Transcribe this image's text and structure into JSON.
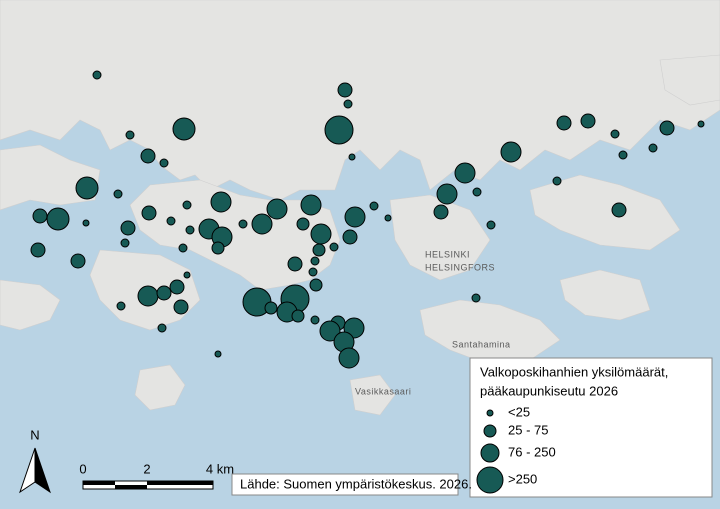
{
  "legend": {
    "title_lines": [
      "Valkoposkihanhien yksilömäärät,",
      " pääkaupunkiseutu 2026"
    ],
    "classes": [
      "<25",
      "25 - 75",
      "76 - 250",
      ">250"
    ]
  },
  "source": "Lähde: Suomen ympäristökeskus. 2026.",
  "scale_bar": {
    "labels": [
      "0",
      "2",
      "4 km"
    ]
  },
  "north_arrow": "N",
  "places": [
    "HELSINKI",
    "HELSINGFORS",
    "Santahamina",
    "Vasikkasaari"
  ]
}
